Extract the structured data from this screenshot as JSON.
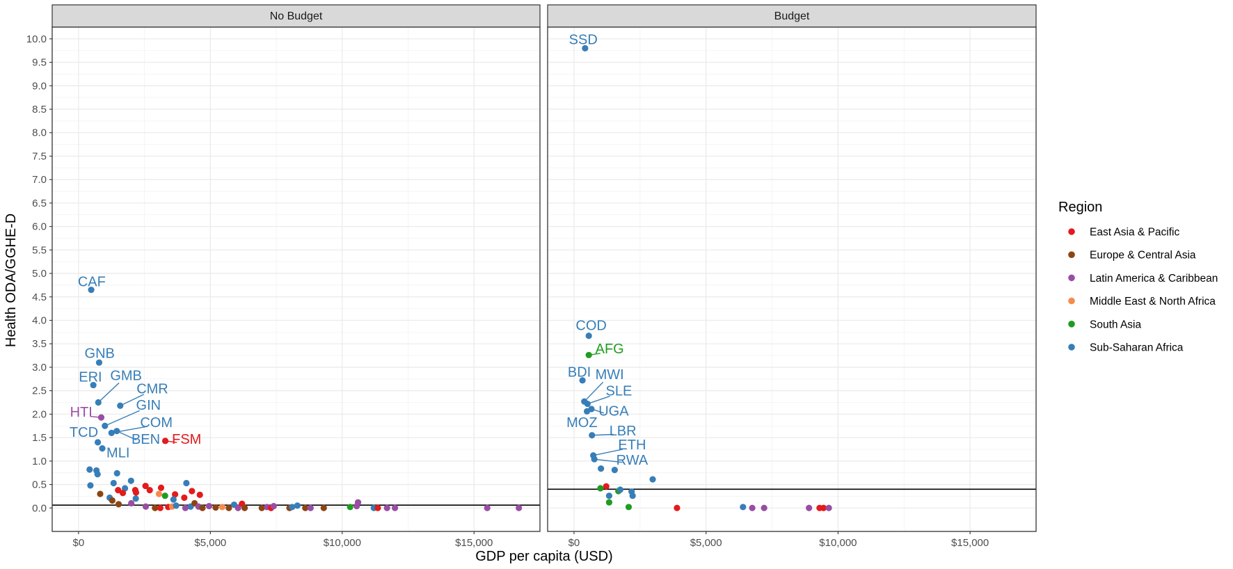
{
  "chart_data": {
    "type": "scatter",
    "xlabel": "GDP per capita (USD)",
    "ylabel": "Health ODA/GGHE-D",
    "xlim": [
      -1000,
      17500
    ],
    "ylim": [
      -0.5,
      10.25
    ],
    "x_ticks": [
      0,
      5000,
      10000,
      15000
    ],
    "x_tick_labels": [
      "$0",
      "$5,000",
      "$10,000",
      "$15,000"
    ],
    "y_ticks": [
      0.0,
      0.5,
      1.0,
      1.5,
      2.0,
      2.5,
      3.0,
      3.5,
      4.0,
      4.5,
      5.0,
      5.5,
      6.0,
      6.5,
      7.0,
      7.5,
      8.0,
      8.5,
      9.0,
      9.5,
      10.0
    ],
    "y_tick_labels": [
      "0.0",
      "0.5",
      "1.0",
      "1.5",
      "2.0",
      "2.5",
      "3.0",
      "3.5",
      "4.0",
      "4.5",
      "5.0",
      "5.5",
      "6.0",
      "6.5",
      "7.0",
      "7.5",
      "8.0",
      "8.5",
      "9.0",
      "9.5",
      "10.0"
    ],
    "grid": true,
    "legend": {
      "title": "Region",
      "placement": "right",
      "entries": [
        {
          "name": "East Asia & Pacific",
          "color": "#e41a1c"
        },
        {
          "name": "Europe & Central Asia",
          "color": "#8b4513"
        },
        {
          "name": "Latin America & Caribbean",
          "color": "#984ea3"
        },
        {
          "name": "Middle East & North Africa",
          "color": "#f58b4c"
        },
        {
          "name": "South Asia",
          "color": "#1f9c1f"
        },
        {
          "name": "Sub-Saharan Africa",
          "color": "#377eb8"
        }
      ]
    },
    "panels": [
      {
        "title": "No Budget",
        "hline": 0.06,
        "points": [
          {
            "x": 480,
            "y": 4.65,
            "region": "Sub-Saharan Africa",
            "label": "CAF"
          },
          {
            "x": 780,
            "y": 3.1,
            "region": "Sub-Saharan Africa",
            "label": "GNB"
          },
          {
            "x": 560,
            "y": 2.62,
            "region": "Sub-Saharan Africa",
            "label": "ERI"
          },
          {
            "x": 750,
            "y": 2.25,
            "region": "Sub-Saharan Africa",
            "label": "GMB"
          },
          {
            "x": 1580,
            "y": 2.18,
            "region": "Sub-Saharan Africa",
            "label": "CMR"
          },
          {
            "x": 860,
            "y": 1.93,
            "region": "Latin America & Caribbean",
            "label": "HTI"
          },
          {
            "x": 1000,
            "y": 1.75,
            "region": "Sub-Saharan Africa",
            "label": "GIN"
          },
          {
            "x": 1250,
            "y": 1.6,
            "region": "Sub-Saharan Africa",
            "label": "COM"
          },
          {
            "x": 1450,
            "y": 1.64,
            "region": "Sub-Saharan Africa",
            "label": "BEN"
          },
          {
            "x": 3290,
            "y": 1.43,
            "region": "East Asia & Pacific",
            "label": "FSM"
          },
          {
            "x": 730,
            "y": 1.4,
            "region": "Sub-Saharan Africa",
            "label": "TCD"
          },
          {
            "x": 900,
            "y": 1.27,
            "region": "Sub-Saharan Africa",
            "label": "MLI"
          },
          {
            "x": 420,
            "y": 0.82,
            "region": "Sub-Saharan Africa"
          },
          {
            "x": 680,
            "y": 0.8,
            "region": "Sub-Saharan Africa"
          },
          {
            "x": 720,
            "y": 0.72,
            "region": "Sub-Saharan Africa"
          },
          {
            "x": 1460,
            "y": 0.74,
            "region": "Sub-Saharan Africa"
          },
          {
            "x": 1330,
            "y": 0.53,
            "region": "Sub-Saharan Africa"
          },
          {
            "x": 1990,
            "y": 0.58,
            "region": "Sub-Saharan Africa"
          },
          {
            "x": 4090,
            "y": 0.53,
            "region": "Sub-Saharan Africa"
          },
          {
            "x": 450,
            "y": 0.48,
            "region": "Sub-Saharan Africa"
          },
          {
            "x": 1760,
            "y": 0.42,
            "region": "Sub-Saharan Africa"
          },
          {
            "x": 1500,
            "y": 0.38,
            "region": "East Asia & Pacific"
          },
          {
            "x": 1680,
            "y": 0.32,
            "region": "East Asia & Pacific"
          },
          {
            "x": 2150,
            "y": 0.38,
            "region": "East Asia & Pacific"
          },
          {
            "x": 2180,
            "y": 0.33,
            "region": "East Asia & Pacific"
          },
          {
            "x": 2540,
            "y": 0.47,
            "region": "East Asia & Pacific"
          },
          {
            "x": 2700,
            "y": 0.38,
            "region": "East Asia & Pacific"
          },
          {
            "x": 3130,
            "y": 0.43,
            "region": "East Asia & Pacific"
          },
          {
            "x": 3660,
            "y": 0.29,
            "region": "East Asia & Pacific"
          },
          {
            "x": 4010,
            "y": 0.22,
            "region": "East Asia & Pacific"
          },
          {
            "x": 4300,
            "y": 0.36,
            "region": "East Asia & Pacific"
          },
          {
            "x": 4600,
            "y": 0.28,
            "region": "East Asia & Pacific"
          },
          {
            "x": 3050,
            "y": 0.3,
            "region": "Middle East & North Africa"
          },
          {
            "x": 3280,
            "y": 0.26,
            "region": "South Asia"
          },
          {
            "x": 3600,
            "y": 0.18,
            "region": "Sub-Saharan Africa"
          },
          {
            "x": 2170,
            "y": 0.2,
            "region": "Sub-Saharan Africa"
          },
          {
            "x": 1180,
            "y": 0.22,
            "region": "Sub-Saharan Africa"
          },
          {
            "x": 820,
            "y": 0.3,
            "region": "Europe & Central Asia"
          },
          {
            "x": 1280,
            "y": 0.16,
            "region": "Europe & Central Asia"
          },
          {
            "x": 1520,
            "y": 0.08,
            "region": "Europe & Central Asia"
          },
          {
            "x": 2000,
            "y": 0.1,
            "region": "Latin America & Caribbean"
          },
          {
            "x": 2550,
            "y": 0.03,
            "region": "Latin America & Caribbean"
          },
          {
            "x": 2900,
            "y": 0.0,
            "region": "Europe & Central Asia"
          },
          {
            "x": 3100,
            "y": 0.0,
            "region": "East Asia & Pacific"
          },
          {
            "x": 3400,
            "y": 0.02,
            "region": "East Asia & Pacific"
          },
          {
            "x": 3550,
            "y": 0.03,
            "region": "Middle East & North Africa"
          },
          {
            "x": 3700,
            "y": 0.05,
            "region": "Sub-Saharan Africa"
          },
          {
            "x": 4050,
            "y": 0.0,
            "region": "Latin America & Caribbean"
          },
          {
            "x": 4250,
            "y": 0.03,
            "region": "Sub-Saharan Africa"
          },
          {
            "x": 4400,
            "y": 0.1,
            "region": "Europe & Central Asia"
          },
          {
            "x": 4550,
            "y": 0.03,
            "region": "Latin America & Caribbean"
          },
          {
            "x": 4700,
            "y": 0.0,
            "region": "Europe & Central Asia"
          },
          {
            "x": 4950,
            "y": 0.04,
            "region": "Latin America & Caribbean"
          },
          {
            "x": 5200,
            "y": 0.01,
            "region": "Europe & Central Asia"
          },
          {
            "x": 5450,
            "y": 0.02,
            "region": "Middle East & North Africa"
          },
          {
            "x": 5700,
            "y": 0.0,
            "region": "Europe & Central Asia"
          },
          {
            "x": 5900,
            "y": 0.07,
            "region": "Sub-Saharan Africa"
          },
          {
            "x": 6050,
            "y": 0.0,
            "region": "Latin America & Caribbean"
          },
          {
            "x": 6200,
            "y": 0.09,
            "region": "East Asia & Pacific"
          },
          {
            "x": 6300,
            "y": 0.0,
            "region": "Europe & Central Asia"
          },
          {
            "x": 6950,
            "y": 0.0,
            "region": "Europe & Central Asia"
          },
          {
            "x": 7150,
            "y": 0.02,
            "region": "Latin America & Caribbean"
          },
          {
            "x": 7300,
            "y": 0.0,
            "region": "East Asia & Pacific"
          },
          {
            "x": 7400,
            "y": 0.04,
            "region": "Latin America & Caribbean"
          },
          {
            "x": 8000,
            "y": 0.0,
            "region": "Europe & Central Asia"
          },
          {
            "x": 8100,
            "y": 0.02,
            "region": "Sub-Saharan Africa"
          },
          {
            "x": 8300,
            "y": 0.05,
            "region": "Sub-Saharan Africa"
          },
          {
            "x": 8600,
            "y": 0.0,
            "region": "Europe & Central Asia"
          },
          {
            "x": 8800,
            "y": 0.0,
            "region": "Latin America & Caribbean"
          },
          {
            "x": 9300,
            "y": 0.0,
            "region": "Europe & Central Asia"
          },
          {
            "x": 10300,
            "y": 0.02,
            "region": "South Asia"
          },
          {
            "x": 10550,
            "y": 0.04,
            "region": "Latin America & Caribbean"
          },
          {
            "x": 10600,
            "y": 0.12,
            "region": "Latin America & Caribbean"
          },
          {
            "x": 11200,
            "y": 0.0,
            "region": "Sub-Saharan Africa"
          },
          {
            "x": 11350,
            "y": 0.0,
            "region": "East Asia & Pacific"
          },
          {
            "x": 11700,
            "y": 0.0,
            "region": "Latin America & Caribbean"
          },
          {
            "x": 12000,
            "y": 0.0,
            "region": "Latin America & Caribbean"
          },
          {
            "x": 15500,
            "y": 0.0,
            "region": "Latin America & Caribbean"
          },
          {
            "x": 16700,
            "y": 0.0,
            "region": "Latin America & Caribbean"
          }
        ],
        "labels": [
          {
            "text": "CAF",
            "x": 500,
            "y": 4.83,
            "region": "Sub-Saharan Africa"
          },
          {
            "text": "GNB",
            "x": 800,
            "y": 3.3,
            "region": "Sub-Saharan Africa"
          },
          {
            "text": "ERI",
            "x": 450,
            "y": 2.8,
            "region": "Sub-Saharan Africa"
          },
          {
            "text": "GMB",
            "x": 1800,
            "y": 2.83,
            "region": "Sub-Saharan Africa"
          },
          {
            "text": "CMR",
            "x": 2800,
            "y": 2.55,
            "region": "Sub-Saharan Africa"
          },
          {
            "text": "HTI",
            "x": 100,
            "y": 2.05,
            "region": "Latin America & Caribbean"
          },
          {
            "text": "GIN",
            "x": 2650,
            "y": 2.2,
            "region": "Sub-Saharan Africa"
          },
          {
            "text": "COM",
            "x": 2950,
            "y": 1.83,
            "region": "Sub-Saharan Africa"
          },
          {
            "text": "TCD",
            "x": 200,
            "y": 1.62,
            "region": "Sub-Saharan Africa"
          },
          {
            "text": "BEN",
            "x": 2550,
            "y": 1.47,
            "region": "Sub-Saharan Africa"
          },
          {
            "text": "FSM",
            "x": 4100,
            "y": 1.47,
            "region": "East Asia & Pacific"
          },
          {
            "text": "MLI",
            "x": 1500,
            "y": 1.18,
            "region": "Sub-Saharan Africa"
          }
        ]
      },
      {
        "title": "Budget",
        "hline": 0.4,
        "points": [
          {
            "x": 420,
            "y": 9.8,
            "region": "Sub-Saharan Africa",
            "label": "SSD"
          },
          {
            "x": 560,
            "y": 3.67,
            "region": "Sub-Saharan Africa",
            "label": "COD"
          },
          {
            "x": 560,
            "y": 3.26,
            "region": "South Asia",
            "label": "AFG"
          },
          {
            "x": 320,
            "y": 2.72,
            "region": "Sub-Saharan Africa",
            "label": "BDI"
          },
          {
            "x": 390,
            "y": 2.27,
            "region": "Sub-Saharan Africa",
            "label": "MWI"
          },
          {
            "x": 510,
            "y": 2.22,
            "region": "Sub-Saharan Africa",
            "label": "SLE"
          },
          {
            "x": 490,
            "y": 2.06,
            "region": "Sub-Saharan Africa",
            "label": "MOZ"
          },
          {
            "x": 660,
            "y": 2.11,
            "region": "Sub-Saharan Africa",
            "label": "UGA"
          },
          {
            "x": 680,
            "y": 1.55,
            "region": "Sub-Saharan Africa",
            "label": "LBR"
          },
          {
            "x": 730,
            "y": 1.12,
            "region": "Sub-Saharan Africa",
            "label": "ETH"
          },
          {
            "x": 770,
            "y": 1.04,
            "region": "Sub-Saharan Africa",
            "label": "RWA"
          },
          {
            "x": 1020,
            "y": 0.84,
            "region": "Sub-Saharan Africa"
          },
          {
            "x": 1540,
            "y": 0.81,
            "region": "Sub-Saharan Africa"
          },
          {
            "x": 2980,
            "y": 0.61,
            "region": "Sub-Saharan Africa"
          },
          {
            "x": 1220,
            "y": 0.46,
            "region": "East Asia & Pacific"
          },
          {
            "x": 1000,
            "y": 0.42,
            "region": "South Asia"
          },
          {
            "x": 1680,
            "y": 0.36,
            "region": "South Asia"
          },
          {
            "x": 1750,
            "y": 0.39,
            "region": "Sub-Saharan Africa"
          },
          {
            "x": 2180,
            "y": 0.35,
            "region": "Sub-Saharan Africa"
          },
          {
            "x": 1330,
            "y": 0.26,
            "region": "Sub-Saharan Africa"
          },
          {
            "x": 2220,
            "y": 0.26,
            "region": "Sub-Saharan Africa"
          },
          {
            "x": 1330,
            "y": 0.12,
            "region": "South Asia"
          },
          {
            "x": 2070,
            "y": 0.02,
            "region": "South Asia"
          },
          {
            "x": 3900,
            "y": 0.0,
            "region": "East Asia & Pacific"
          },
          {
            "x": 6400,
            "y": 0.02,
            "region": "Sub-Saharan Africa"
          },
          {
            "x": 6750,
            "y": 0.0,
            "region": "Latin America & Caribbean"
          },
          {
            "x": 7200,
            "y": 0.0,
            "region": "Latin America & Caribbean"
          },
          {
            "x": 8900,
            "y": 0.0,
            "region": "Latin America & Caribbean"
          },
          {
            "x": 9300,
            "y": 0.0,
            "region": "East Asia & Pacific"
          },
          {
            "x": 9450,
            "y": 0.0,
            "region": "East Asia & Pacific"
          },
          {
            "x": 9650,
            "y": 0.0,
            "region": "Latin America & Caribbean"
          }
        ],
        "labels": [
          {
            "text": "SSD",
            "x": 350,
            "y": 9.99,
            "region": "Sub-Saharan Africa"
          },
          {
            "text": "COD",
            "x": 650,
            "y": 3.9,
            "region": "Sub-Saharan Africa"
          },
          {
            "text": "AFG",
            "x": 1350,
            "y": 3.4,
            "region": "South Asia"
          },
          {
            "text": "BDI",
            "x": 200,
            "y": 2.9,
            "region": "Sub-Saharan Africa"
          },
          {
            "text": "MWI",
            "x": 1350,
            "y": 2.85,
            "region": "Sub-Saharan Africa"
          },
          {
            "text": "SLE",
            "x": 1700,
            "y": 2.5,
            "region": "Sub-Saharan Africa"
          },
          {
            "text": "UGA",
            "x": 1500,
            "y": 2.07,
            "region": "Sub-Saharan Africa"
          },
          {
            "text": "MOZ",
            "x": 300,
            "y": 1.83,
            "region": "Sub-Saharan Africa"
          },
          {
            "text": "LBR",
            "x": 1850,
            "y": 1.65,
            "region": "Sub-Saharan Africa"
          },
          {
            "text": "ETH",
            "x": 2200,
            "y": 1.35,
            "region": "Sub-Saharan Africa"
          },
          {
            "text": "RWA",
            "x": 2200,
            "y": 1.03,
            "region": "Sub-Saharan Africa"
          }
        ]
      }
    ]
  }
}
